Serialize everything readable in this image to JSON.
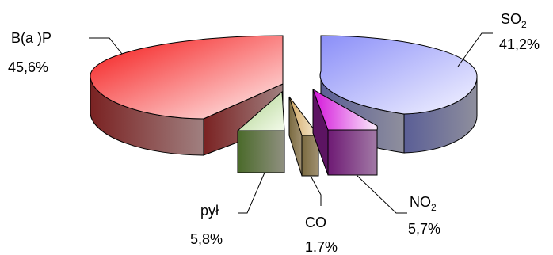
{
  "chart_data": {
    "type": "pie",
    "style": "3d-exploded",
    "categories": [
      "SO",
      "NO",
      "CO",
      "pył",
      "B(a )P"
    ],
    "category_subscripts": [
      "2",
      "2",
      "",
      "",
      ""
    ],
    "values": [
      41.2,
      5.7,
      1.7,
      5.8,
      45.6
    ],
    "value_labels": [
      "41,2%",
      "5,7%",
      "1.7%",
      "5,8%",
      "45,6%"
    ],
    "colors": [
      "#9ea2f2",
      "#c020c8",
      "#ddc08c",
      "#c8e0a6",
      "#ee4a4a"
    ],
    "legend": "none"
  }
}
